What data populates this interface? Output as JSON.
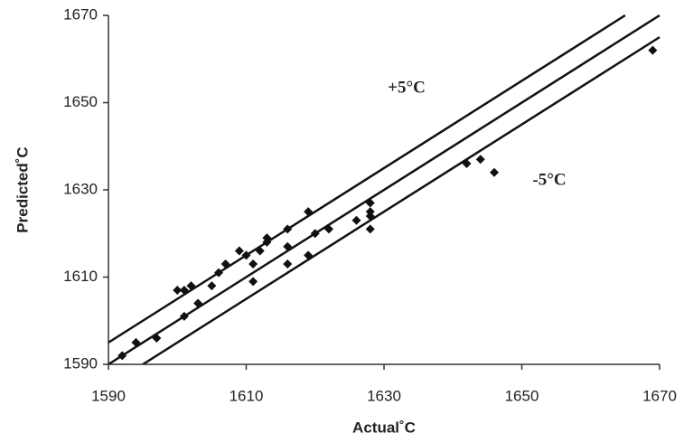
{
  "chart_data": {
    "type": "scatter",
    "x_label": "Actual˚C",
    "y_label": "Predicted˚C",
    "annotations": [
      "+5°C",
      "-5°C"
    ],
    "xlim": [
      1590,
      1670
    ],
    "ylim": [
      1590,
      1670
    ],
    "xticks": [
      1590,
      1610,
      1630,
      1650,
      1670
    ],
    "yticks": [
      1590,
      1610,
      1630,
      1650,
      1670
    ],
    "grid": false,
    "series": [
      {
        "type": "scatter",
        "color": "#111111",
        "x": [
          1592,
          1594,
          1597,
          1600,
          1601,
          1602,
          1601,
          1603,
          1605,
          1606,
          1607,
          1609,
          1610,
          1611,
          1611,
          1612,
          1613,
          1613,
          1616,
          1616,
          1616,
          1619,
          1619,
          1620,
          1622,
          1626,
          1628,
          1628,
          1628,
          1628,
          1642,
          1644,
          1646,
          1669
        ],
        "values": [
          1592,
          1595,
          1596,
          1607,
          1607,
          1608,
          1601,
          1604,
          1608,
          1611,
          1613,
          1616,
          1615,
          1609,
          1613,
          1616,
          1618,
          1619,
          1621,
          1617,
          1613,
          1625,
          1615,
          1620,
          1621,
          1623,
          1627,
          1625,
          1624,
          1621,
          1636,
          1637,
          1634,
          1662
        ]
      },
      {
        "type": "line",
        "color": "#111111",
        "x": [
          1590,
          1665
        ],
        "values": [
          1595,
          1670
        ]
      },
      {
        "type": "line",
        "color": "#111111",
        "x": [
          1590,
          1670
        ],
        "values": [
          1590,
          1670
        ]
      },
      {
        "type": "line",
        "color": "#111111",
        "x": [
          1595,
          1670
        ],
        "values": [
          1590,
          1665
        ]
      }
    ]
  }
}
